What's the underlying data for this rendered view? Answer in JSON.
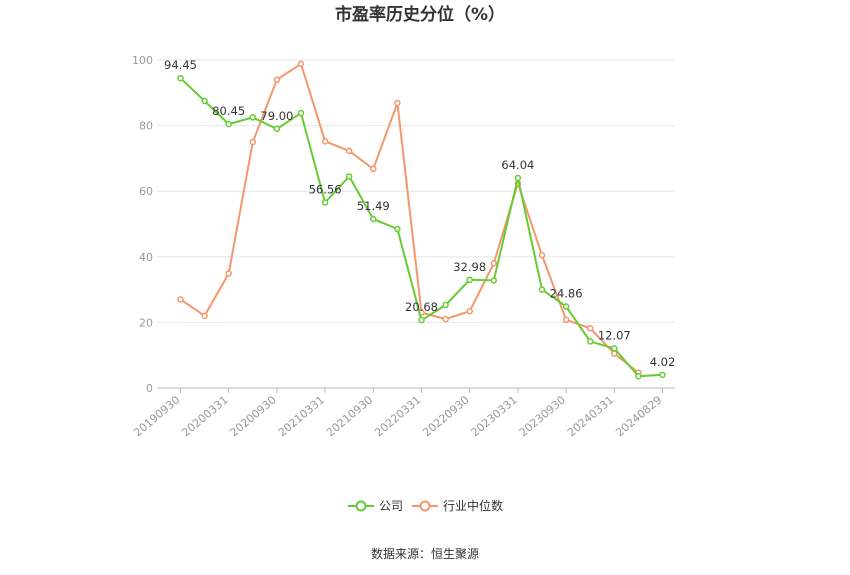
{
  "colors": {
    "company": "#66cc33",
    "industry": "#f4976c",
    "grid": "#e6e6ee",
    "axis": "#999999"
  },
  "chart_data": {
    "type": "line",
    "title": "市盈率历史分位（%）",
    "xlabel": "",
    "ylabel": "",
    "ylim": [
      0,
      100
    ],
    "yticks": [
      0,
      20,
      40,
      60,
      80,
      100
    ],
    "x_tick_labels": [
      "20190930",
      "20200331",
      "20200930",
      "20210331",
      "20210930",
      "20220331",
      "20220930",
      "20230331",
      "20230930",
      "20240331",
      "20240829"
    ],
    "x_tick_indices": [
      0,
      2,
      4,
      6,
      8,
      10,
      12,
      14,
      16,
      18,
      20
    ],
    "n_points": 21,
    "grid": true,
    "legend_position": "bottom-center",
    "series": [
      {
        "name": "公司",
        "color": "#66cc33",
        "values": [
          94.45,
          87.5,
          80.45,
          82.5,
          79.0,
          83.8,
          56.56,
          64.5,
          51.49,
          48.5,
          20.68,
          25.3,
          32.98,
          32.8,
          64.04,
          30.0,
          24.86,
          14.2,
          12.07,
          3.6,
          4.02
        ],
        "labels": {
          "0": "94.45",
          "2": "80.45",
          "4": "79.00",
          "6": "56.56",
          "8": "51.49",
          "10": "20.68",
          "12": "32.98",
          "14": "64.04",
          "16": "24.86",
          "18": "12.07",
          "20": "4.02"
        }
      },
      {
        "name": "行业中位数",
        "color": "#f4976c",
        "values": [
          27.0,
          22.0,
          34.9,
          75.0,
          94.0,
          98.8,
          75.2,
          72.3,
          66.8,
          86.9,
          23.0,
          21.0,
          23.4,
          38.0,
          62.4,
          40.5,
          20.8,
          18.2,
          10.5,
          4.7,
          null
        ]
      }
    ]
  },
  "source_text": "数据来源：恒生聚源"
}
